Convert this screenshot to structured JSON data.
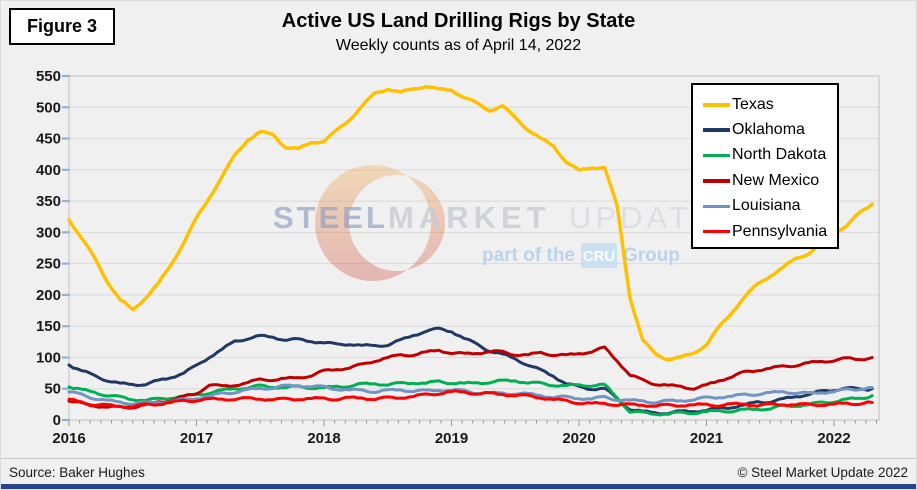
{
  "figure_label": "Figure 3",
  "title": "Active US Land Drilling Rigs by State",
  "subtitle": "Weekly counts as of April 14, 2022",
  "watermark": {
    "word_steel": "STEEL",
    "word_market": "MARKET",
    "word_update": "UPDATE",
    "part_of_the": "part of the",
    "cru": "CRU",
    "group": "Group",
    "crescent_top_color": "#F2A43C",
    "crescent_bottom_color": "#C93A30",
    "steel_color": "#93A1C0",
    "market_color": "#C6CBD6",
    "update_color": "#D9DCE2",
    "cru_line_color": "#AECDE9",
    "cru_box_color": "#BFDDF4"
  },
  "footer": {
    "source": "Source: Baker Hughes",
    "copyright": "© Steel Market Update 2022",
    "bar_color": "#27448C"
  },
  "colors": {
    "background": "#F0F0F0",
    "gridline": "#D9D9D9",
    "plot_border": "#BFBFBF",
    "x_tick": "#9A9A9A",
    "y_tick_blue": "#85B4E3",
    "text": "#1A1A1A"
  },
  "chart_data": {
    "type": "line",
    "title": "Active US Land Drilling Rigs by State",
    "subtitle": "Weekly counts as of April 14, 2022",
    "xlabel": "",
    "ylabel": "",
    "x_start": 2016.0,
    "x_step": 0.1,
    "x_ticks": [
      2016,
      2017,
      2018,
      2019,
      2020,
      2021,
      2022
    ],
    "y_ticks": [
      0,
      50,
      100,
      150,
      200,
      250,
      300,
      350,
      400,
      450,
      500,
      550
    ],
    "ylim": [
      0,
      550
    ],
    "xlim": [
      2016.0,
      2022.35
    ],
    "grid": true,
    "legend_position": "top-right",
    "series": [
      {
        "name": "Texas",
        "color": "#FFC000",
        "width": 3.5,
        "values": [
          320,
          292,
          258,
          222,
          193,
          175,
          196,
          218,
          247,
          285,
          322,
          355,
          390,
          422,
          448,
          461,
          455,
          437,
          433,
          443,
          447,
          462,
          480,
          503,
          521,
          530,
          524,
          528,
          535,
          528,
          527,
          517,
          505,
          495,
          503,
          482,
          465,
          450,
          437,
          414,
          398,
          403,
          405,
          340,
          196,
          128,
          104,
          98,
          100,
          106,
          122,
          148,
          172,
          198,
          216,
          231,
          244,
          257,
          267,
          281,
          298,
          312,
          330,
          345
        ]
      },
      {
        "name": "Oklahoma",
        "color": "#1F3864",
        "width": 3,
        "values": [
          88,
          79,
          70,
          64,
          58,
          56,
          58,
          62,
          68,
          76,
          86,
          101,
          113,
          125,
          131,
          134,
          132,
          129,
          128,
          126,
          124,
          120,
          122,
          119,
          118,
          121,
          127,
          135,
          143,
          145,
          142,
          131,
          120,
          111,
          105,
          97,
          89,
          79,
          70,
          59,
          52,
          50,
          51,
          33,
          18,
          13,
          11,
          12,
          13,
          14,
          16,
          18,
          21,
          24,
          28,
          30,
          33,
          37,
          42,
          45,
          48,
          52,
          48,
          50
        ]
      },
      {
        "name": "North Dakota",
        "color": "#00B050",
        "width": 3,
        "values": [
          53,
          48,
          44,
          40,
          36,
          33,
          32,
          33,
          36,
          38,
          40,
          44,
          47,
          50,
          52,
          54,
          53,
          52,
          53,
          52,
          51,
          53,
          55,
          57,
          58,
          57,
          58,
          60,
          59,
          61,
          60,
          58,
          59,
          61,
          62,
          63,
          60,
          58,
          56,
          55,
          55,
          56,
          56,
          35,
          14,
          11,
          10,
          10,
          11,
          12,
          13,
          14,
          15,
          16,
          17,
          19,
          22,
          23,
          25,
          27,
          30,
          33,
          34,
          39
        ]
      },
      {
        "name": "New Mexico",
        "color": "#C00000",
        "width": 3,
        "values": [
          30,
          26,
          23,
          21,
          20,
          21,
          24,
          28,
          32,
          37,
          42,
          57,
          53,
          56,
          60,
          64,
          65,
          66,
          67,
          72,
          78,
          81,
          84,
          88,
          95,
          100,
          103,
          105,
          108,
          111,
          108,
          105,
          107,
          110,
          108,
          105,
          104,
          107,
          105,
          103,
          106,
          110,
          115,
          95,
          72,
          63,
          58,
          55,
          53,
          51,
          55,
          63,
          70,
          76,
          80,
          83,
          85,
          88,
          91,
          93,
          96,
          98,
          97,
          100
        ]
      },
      {
        "name": "Louisiana",
        "color": "#7094C4",
        "width": 3,
        "values": [
          45,
          40,
          35,
          31,
          28,
          27,
          27,
          28,
          30,
          32,
          35,
          38,
          42,
          45,
          48,
          50,
          52,
          54,
          55,
          54,
          52,
          50,
          48,
          47,
          46,
          47,
          48,
          47,
          46,
          48,
          48,
          46,
          44,
          43,
          42,
          43,
          41,
          39,
          37,
          36,
          35,
          34,
          36,
          33,
          31,
          30,
          29,
          30,
          31,
          33,
          35,
          37,
          38,
          40,
          42,
          43,
          45,
          44,
          42,
          44,
          46,
          48,
          50,
          52
        ]
      },
      {
        "name": "Pennsylvania",
        "color": "#FF0000",
        "width": 3,
        "values": [
          33,
          28,
          25,
          23,
          22,
          22,
          24,
          26,
          28,
          30,
          32,
          33,
          33,
          34,
          34,
          34,
          33,
          33,
          34,
          34,
          34,
          34,
          35,
          35,
          34,
          35,
          36,
          38,
          40,
          43,
          45,
          44,
          43,
          42,
          41,
          40,
          38,
          36,
          33,
          30,
          28,
          26,
          26,
          25,
          24,
          24,
          23,
          23,
          24,
          24,
          24,
          24,
          25,
          25,
          24,
          24,
          25,
          25,
          24,
          25,
          25,
          26,
          27,
          28
        ]
      }
    ]
  }
}
